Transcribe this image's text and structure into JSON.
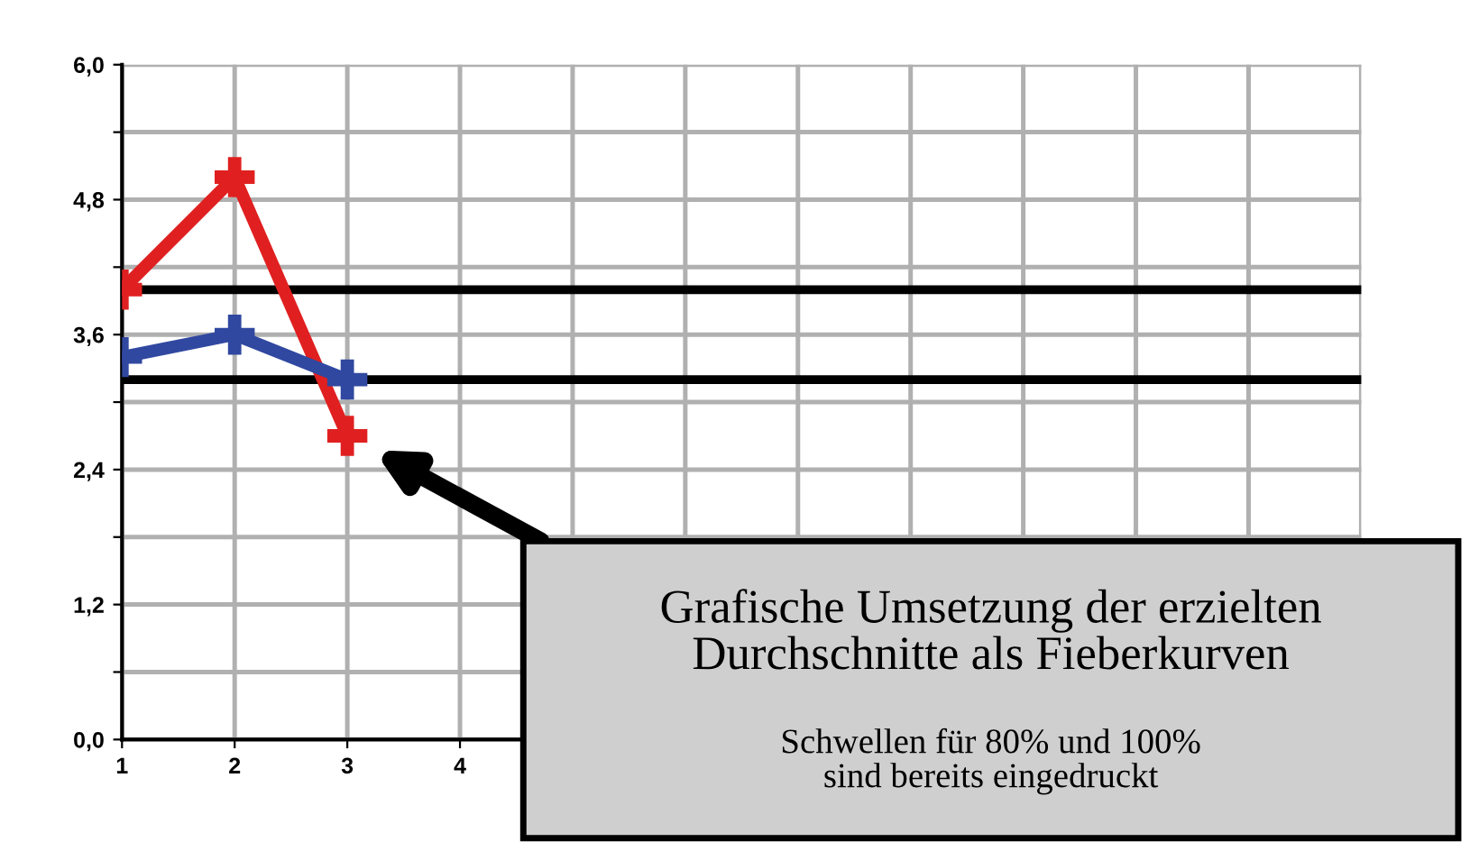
{
  "chart_data": {
    "type": "line",
    "categories": [
      "1",
      "2",
      "3",
      "4",
      null,
      null,
      null,
      null,
      null,
      null,
      null,
      null
    ],
    "series": [
      {
        "color": "#e02020",
        "values": [
          4.0,
          5.0,
          2.7,
          null,
          null,
          null,
          null,
          null,
          null,
          null,
          null,
          null
        ]
      },
      {
        "color": "#3048a0",
        "values": [
          3.4,
          3.6,
          3.2,
          null,
          null,
          null,
          null,
          null,
          null,
          null,
          null,
          null
        ]
      }
    ],
    "ylim": [
      0,
      6
    ],
    "yticks": [
      {
        "value": 0,
        "label": "0,0"
      },
      {
        "value": 0.6,
        "label": null
      },
      {
        "value": 1.2,
        "label": "1,2"
      },
      {
        "value": 1.8,
        "label": null
      },
      {
        "value": 2.4,
        "label": "2,4"
      },
      {
        "value": 3.0,
        "label": null
      },
      {
        "value": 3.6,
        "label": "3,6"
      },
      {
        "value": 4.2,
        "label": null
      },
      {
        "value": 4.8,
        "label": "4,8"
      },
      {
        "value": 5.4,
        "label": null
      },
      {
        "value": 6.0,
        "label": "6,0"
      }
    ],
    "ref_lines": [
      {
        "axis": "y",
        "value": 4.0,
        "color": "#000000"
      },
      {
        "axis": "y",
        "value": 3.2,
        "color": "#000000"
      }
    ],
    "grid": true,
    "marker": "cross",
    "legend": false,
    "annotations": [
      "Grafische Umsetzung der erzielten\nDurchschnitte als Fieberkurven",
      "Schwellen für 80% und 100%\nsind bereits eingedruckt"
    ]
  }
}
